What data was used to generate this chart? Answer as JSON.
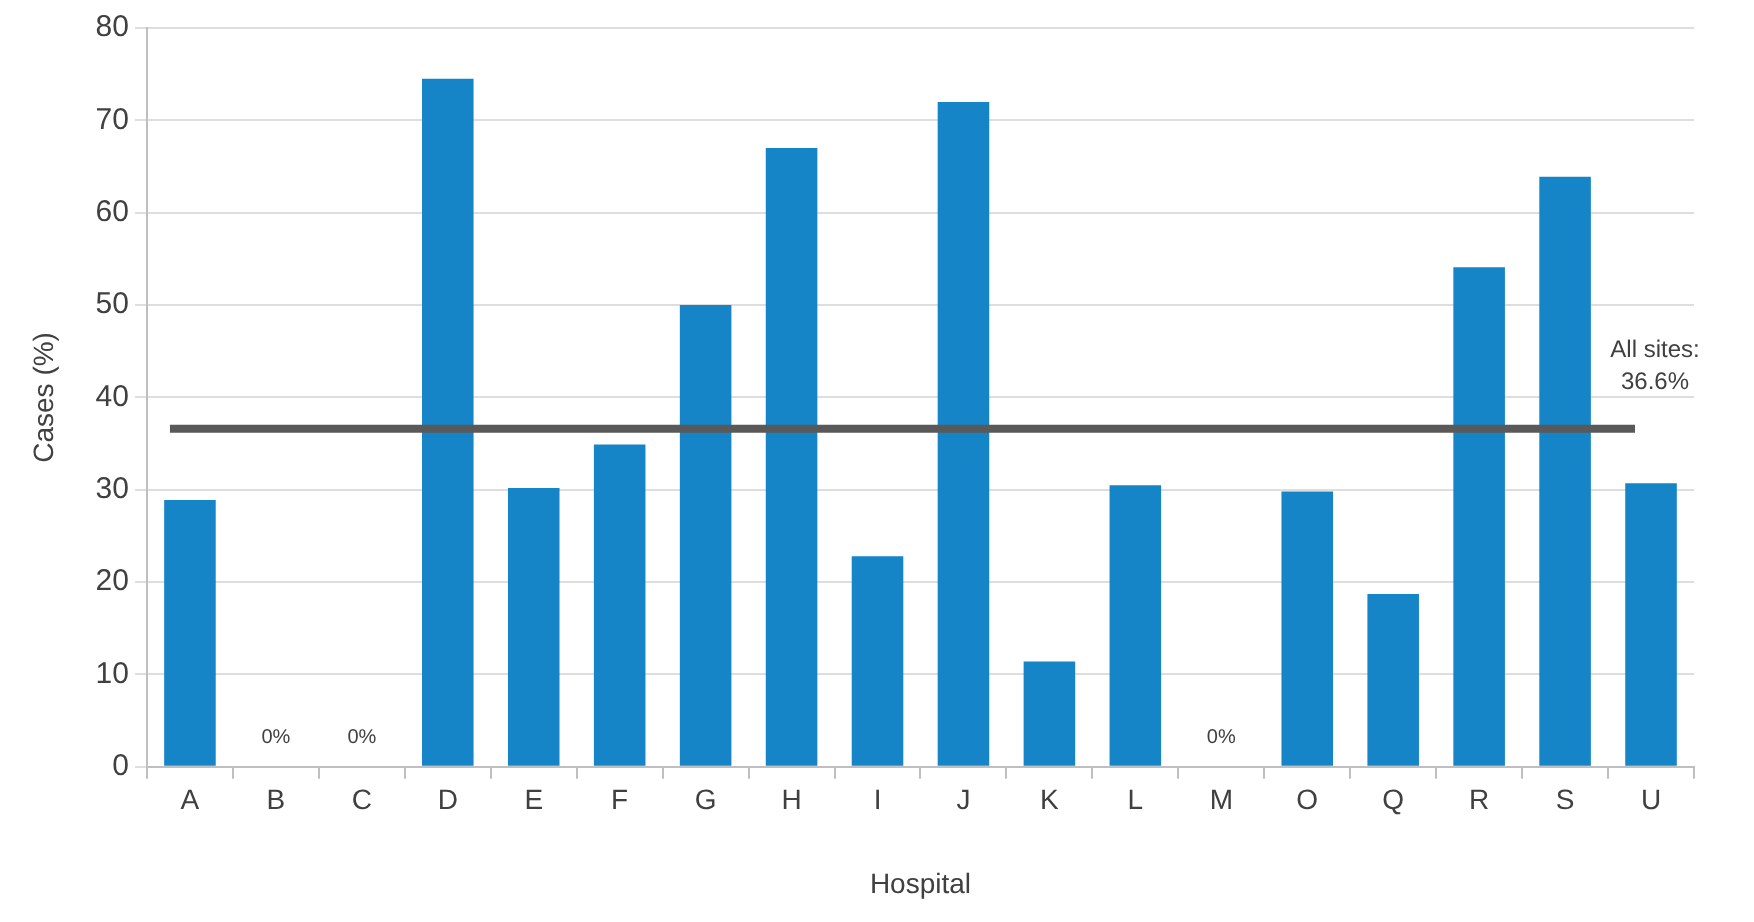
{
  "chart_data": {
    "type": "bar",
    "xlabel": "Hospital",
    "ylabel": "Cases (%)",
    "categories": [
      "A",
      "B",
      "C",
      "D",
      "E",
      "F",
      "G",
      "H",
      "I",
      "J",
      "K",
      "L",
      "M",
      "O",
      "Q",
      "R",
      "S",
      "U"
    ],
    "values": [
      28.9,
      0,
      0,
      74.5,
      30.2,
      34.9,
      50.0,
      67.0,
      22.8,
      72.0,
      11.4,
      30.5,
      0,
      29.8,
      18.7,
      54.1,
      63.9,
      30.7
    ],
    "value_labels": [
      null,
      "0%",
      "0%",
      null,
      null,
      null,
      null,
      null,
      null,
      null,
      null,
      null,
      "0%",
      null,
      null,
      null,
      null,
      null
    ],
    "color": "#1585c8",
    "ylim": [
      0,
      80
    ],
    "yticks": [
      0,
      10,
      20,
      30,
      40,
      50,
      60,
      70,
      80
    ],
    "grid": "y",
    "legend": false,
    "ref_lines": [
      {
        "axis": "y",
        "value": 36.6,
        "label": "All sites: 36.6%",
        "color": "#595959"
      }
    ]
  }
}
